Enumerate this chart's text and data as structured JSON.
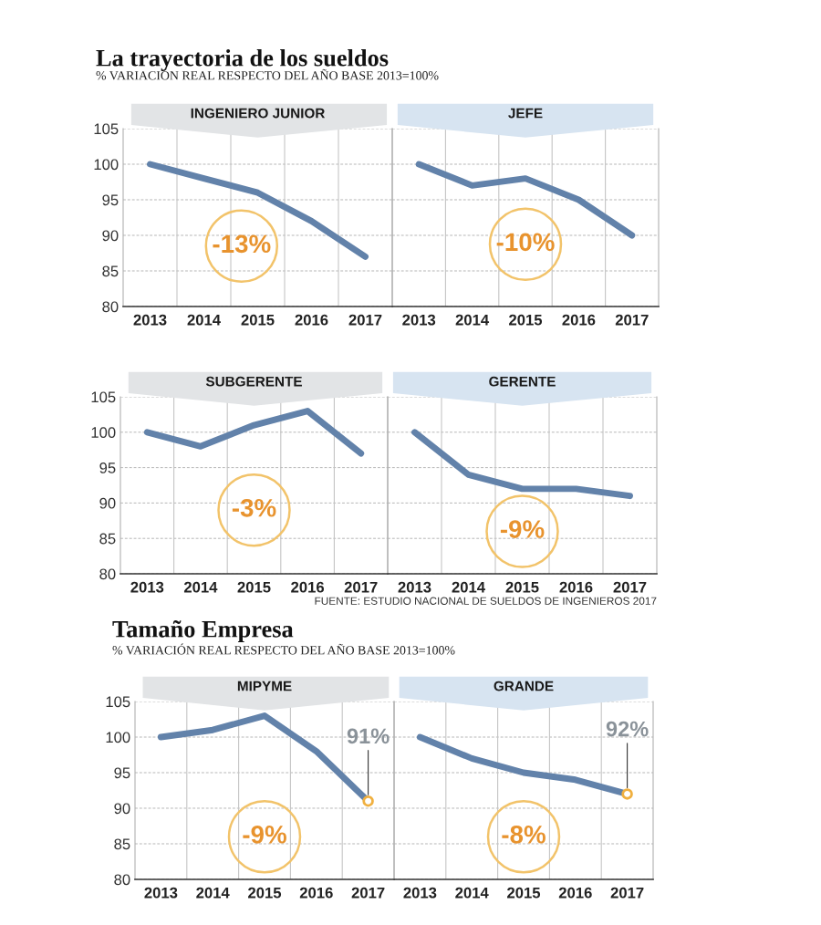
{
  "chart_data": [
    {
      "type": "line",
      "title": "La trayectoria de los sueldos",
      "subtitle": "% VARIACIÓN REAL RESPECTO DEL AÑO BASE 2013=100%",
      "categories": [
        "2013",
        "2014",
        "2015",
        "2016",
        "2017"
      ],
      "series": [
        {
          "name": "INGENIERO JUNIOR",
          "color": "#6282aa",
          "values": [
            100,
            98,
            96,
            92,
            87
          ]
        }
      ],
      "ylim": [
        80,
        105
      ],
      "yticks": [
        80,
        85,
        90,
        95,
        100,
        105
      ],
      "grid": true,
      "line_style": "solid",
      "annotations": [
        "-13%"
      ]
    },
    {
      "type": "line",
      "categories": [
        "2013",
        "2014",
        "2015",
        "2016",
        "2017"
      ],
      "series": [
        {
          "name": "JEFE",
          "color": "#6282aa",
          "values": [
            100,
            97,
            98,
            95,
            90
          ]
        }
      ],
      "ylim": [
        80,
        105
      ],
      "yticks": [
        80,
        85,
        90,
        95,
        100,
        105
      ],
      "grid": true,
      "line_style": "solid",
      "tick_labels": "x",
      "annotations": [
        "-10%"
      ]
    },
    {
      "type": "line",
      "categories": [
        "2013",
        "2014",
        "2015",
        "2016",
        "2017"
      ],
      "series": [
        {
          "name": "SUBGERENTE",
          "color": "#6282aa",
          "values": [
            100,
            98,
            101,
            103,
            97
          ]
        }
      ],
      "ylim": [
        80,
        105
      ],
      "yticks": [
        80,
        85,
        90,
        95,
        100,
        105
      ],
      "grid": true,
      "line_style": "solid",
      "annotations": [
        "-3%"
      ]
    },
    {
      "type": "line",
      "categories": [
        "2013",
        "2014",
        "2015",
        "2016",
        "2017"
      ],
      "series": [
        {
          "name": "GERENTE",
          "color": "#6282aa",
          "values": [
            100,
            94,
            92,
            92,
            91
          ]
        }
      ],
      "ylim": [
        80,
        105
      ],
      "yticks": [
        80,
        85,
        90,
        95,
        100,
        105
      ],
      "grid": true,
      "line_style": "solid",
      "tick_labels": "x",
      "annotations": [
        "-9%",
        "FUENTE: ESTUDIO NACIONAL DE SUELDOS DE INGENIEROS 2017"
      ]
    },
    {
      "type": "line",
      "title": "Tamaño Empresa",
      "subtitle": "% VARIACIÓN REAL RESPECTO DEL AÑO BASE 2013=100%",
      "categories": [
        "2013",
        "2014",
        "2015",
        "2016",
        "2017"
      ],
      "series": [
        {
          "name": "MIPYME",
          "color": "#6282aa",
          "values": [
            100,
            101,
            103,
            98,
            91
          ],
          "value_labels": [
            null,
            null,
            null,
            null,
            "91%"
          ]
        }
      ],
      "ylim": [
        80,
        105
      ],
      "yticks": [
        80,
        85,
        90,
        95,
        100,
        105
      ],
      "grid": true,
      "line_style": "solid",
      "annotations": [
        "-9%"
      ]
    },
    {
      "type": "line",
      "categories": [
        "2013",
        "2014",
        "2015",
        "2016",
        "2017"
      ],
      "series": [
        {
          "name": "GRANDE",
          "color": "#6282aa",
          "values": [
            100,
            97,
            95,
            94,
            92
          ],
          "value_labels": [
            null,
            null,
            null,
            null,
            "92%"
          ]
        }
      ],
      "ylim": [
        80,
        105
      ],
      "yticks": [
        80,
        85,
        90,
        95,
        100,
        105
      ],
      "grid": true,
      "line_style": "solid",
      "tick_labels": "x",
      "annotations": [
        "-8%"
      ]
    }
  ]
}
